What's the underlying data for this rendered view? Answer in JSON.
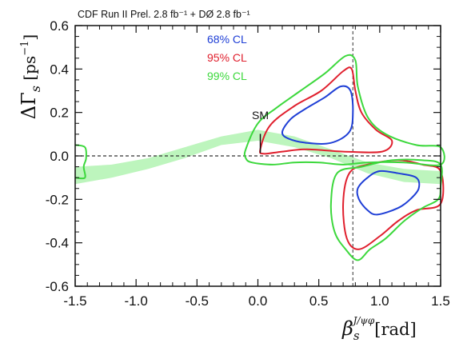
{
  "chart_data": {
    "type": "contour",
    "title": "CDF  Run II Prel. 2.8 fb⁻¹ + DØ  2.8 fb⁻¹",
    "xlabel": "βs J/ψφ [rad]",
    "ylabel": "ΔΓs [ps⁻¹]",
    "xlim": [
      -1.5,
      1.5
    ],
    "ylim": [
      -0.6,
      0.6
    ],
    "xticks": [
      "-1.5",
      "-1.0",
      "-0.5",
      "0.0",
      "0.5",
      "1.0",
      "1.5"
    ],
    "yticks": [
      "0.6",
      "0.4",
      "0.2",
      "0.0",
      "-0.2",
      "-0.4",
      "-0.6"
    ],
    "xtick_values": [
      -1.5,
      -1.0,
      -0.5,
      0.0,
      0.5,
      1.0,
      1.5
    ],
    "ytick_values": [
      0.6,
      0.4,
      0.2,
      0.0,
      -0.2,
      -0.4,
      -0.6
    ],
    "legend_position": "top-left",
    "legend": [
      {
        "label": "68% CL",
        "color": "#1f3fd6"
      },
      {
        "label": "95% CL",
        "color": "#e0202e"
      },
      {
        "label": "99% CL",
        "color": "#3cd83c"
      }
    ],
    "sm_label": "SM",
    "sm_point": [
      0.02,
      0.05
    ],
    "band_color": "#bdf5bd",
    "band": {
      "x": [
        -1.5,
        -1.2,
        -0.9,
        -0.6,
        -0.3,
        0.0,
        0.3,
        0.6,
        0.9,
        1.2,
        1.5
      ],
      "upper": [
        -0.05,
        -0.04,
        -0.01,
        0.04,
        0.09,
        0.12,
        0.09,
        0.03,
        -0.03,
        -0.06,
        -0.07
      ],
      "lower": [
        -0.13,
        -0.1,
        -0.06,
        -0.01,
        0.05,
        0.07,
        0.04,
        -0.01,
        -0.08,
        -0.12,
        -0.13
      ]
    },
    "reference_lines": {
      "horizontal_y": 0.0,
      "vertical_x": 0.78
    },
    "contours": [
      {
        "level": "68% CL",
        "color": "#1f3fd6",
        "points": [
          [
            0.2,
            0.11
          ],
          [
            0.27,
            0.17
          ],
          [
            0.4,
            0.22
          ],
          [
            0.55,
            0.27
          ],
          [
            0.68,
            0.32
          ],
          [
            0.76,
            0.3
          ],
          [
            0.78,
            0.2
          ],
          [
            0.75,
            0.11
          ],
          [
            0.6,
            0.06
          ],
          [
            0.4,
            0.06
          ],
          [
            0.25,
            0.08
          ]
        ]
      },
      {
        "level": "68% CL",
        "color": "#1f3fd6",
        "points": [
          [
            0.82,
            -0.15
          ],
          [
            0.9,
            -0.1
          ],
          [
            1.0,
            -0.07
          ],
          [
            1.15,
            -0.08
          ],
          [
            1.3,
            -0.1
          ],
          [
            1.32,
            -0.15
          ],
          [
            1.25,
            -0.2
          ],
          [
            1.15,
            -0.24
          ],
          [
            0.98,
            -0.27
          ],
          [
            0.9,
            -0.25
          ],
          [
            0.83,
            -0.2
          ]
        ]
      },
      {
        "level": "95% CL",
        "color": "#e0202e",
        "points": [
          [
            0.02,
            0.03
          ],
          [
            0.1,
            0.14
          ],
          [
            0.3,
            0.23
          ],
          [
            0.52,
            0.3
          ],
          [
            0.7,
            0.39
          ],
          [
            0.77,
            0.4
          ],
          [
            0.8,
            0.3
          ],
          [
            0.85,
            0.2
          ],
          [
            0.97,
            0.12
          ],
          [
            1.1,
            0.07
          ],
          [
            1.02,
            0.02
          ],
          [
            0.7,
            0.02
          ],
          [
            0.4,
            0.03
          ],
          [
            0.2,
            0.02
          ],
          [
            0.05,
            0.01
          ]
        ]
      },
      {
        "level": "95% CL",
        "color": "#e0202e",
        "points": [
          [
            0.75,
            -0.08
          ],
          [
            0.9,
            -0.04
          ],
          [
            1.15,
            -0.02
          ],
          [
            1.35,
            -0.04
          ],
          [
            1.5,
            -0.07
          ],
          [
            1.5,
            -0.22
          ],
          [
            1.3,
            -0.25
          ],
          [
            1.15,
            -0.3
          ],
          [
            1.0,
            -0.37
          ],
          [
            0.83,
            -0.43
          ],
          [
            0.73,
            -0.38
          ],
          [
            0.7,
            -0.22
          ]
        ]
      },
      {
        "level": "99% CL",
        "color": "#3cd83c",
        "points": [
          [
            -0.1,
            0.03
          ],
          [
            0.0,
            0.15
          ],
          [
            0.15,
            0.22
          ],
          [
            0.35,
            0.3
          ],
          [
            0.55,
            0.38
          ],
          [
            0.72,
            0.46
          ],
          [
            0.8,
            0.44
          ],
          [
            0.82,
            0.32
          ],
          [
            0.9,
            0.18
          ],
          [
            1.05,
            0.1
          ],
          [
            1.3,
            0.05
          ],
          [
            1.5,
            0.04
          ],
          [
            1.5,
            -0.04
          ],
          [
            1.2,
            -0.03
          ],
          [
            0.9,
            -0.03
          ],
          [
            0.7,
            -0.04
          ],
          [
            0.5,
            -0.03
          ],
          [
            0.3,
            -0.03
          ],
          [
            0.12,
            -0.04
          ],
          [
            -0.05,
            -0.03
          ],
          [
            -0.1,
            -0.01
          ]
        ]
      },
      {
        "level": "99% CL",
        "color": "#3cd83c",
        "points": [
          [
            0.65,
            -0.08
          ],
          [
            0.85,
            -0.05
          ],
          [
            1.1,
            -0.02
          ],
          [
            1.35,
            -0.02
          ],
          [
            1.5,
            -0.04
          ],
          [
            1.5,
            -0.14
          ],
          [
            1.48,
            -0.2
          ],
          [
            1.35,
            -0.24
          ],
          [
            1.2,
            -0.3
          ],
          [
            1.05,
            -0.38
          ],
          [
            0.92,
            -0.43
          ],
          [
            0.82,
            -0.48
          ],
          [
            0.72,
            -0.43
          ],
          [
            0.63,
            -0.35
          ],
          [
            0.6,
            -0.22
          ]
        ]
      },
      {
        "level": "99% CL",
        "color": "#3cd83c",
        "points": [
          [
            -1.5,
            0.05
          ],
          [
            -1.42,
            0.04
          ],
          [
            -1.41,
            -0.01
          ],
          [
            -1.43,
            -0.05
          ],
          [
            -1.42,
            -0.1
          ],
          [
            -1.5,
            -0.1
          ]
        ],
        "closed": false
      }
    ]
  }
}
